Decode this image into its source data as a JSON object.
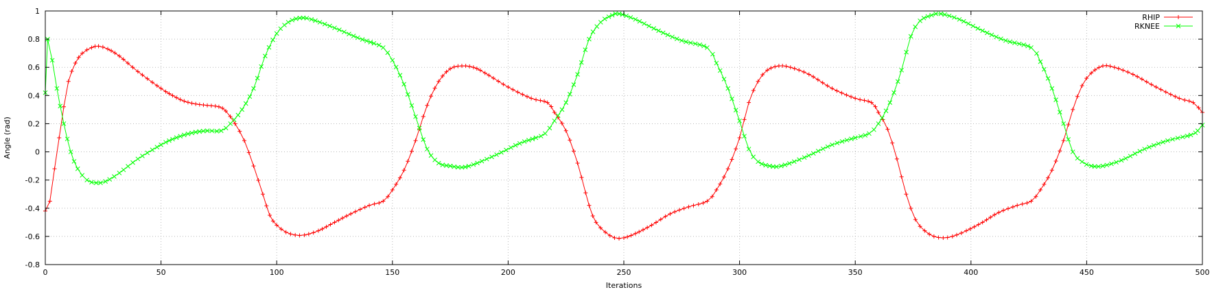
{
  "chart_data": {
    "type": "line",
    "title": "",
    "xlabel": "Iterations",
    "ylabel": "Angle (rad)",
    "xlim": [
      0,
      500
    ],
    "ylim": [
      -0.8,
      1
    ],
    "x_ticks": [
      0,
      50,
      100,
      150,
      200,
      250,
      300,
      350,
      400,
      450,
      500
    ],
    "y_ticks": [
      -0.8,
      -0.6,
      -0.4,
      -0.2,
      0,
      0.2,
      0.4,
      0.6,
      0.8,
      1
    ],
    "y_tick_labels": [
      "-0.8",
      "-0.6",
      "-0.4",
      "-0.2",
      "0",
      "0.2",
      "0.4",
      "0.6",
      "0.8",
      "1"
    ],
    "grid": true,
    "legend_position": "top-right",
    "series": [
      {
        "name": "RHIP",
        "color": "#ff0000",
        "marker": "plus",
        "points": [
          [
            0,
            -0.42
          ],
          [
            2,
            -0.35
          ],
          [
            4,
            -0.12
          ],
          [
            6,
            0.1
          ],
          [
            8,
            0.32
          ],
          [
            10,
            0.5
          ],
          [
            13,
            0.63
          ],
          [
            16,
            0.7
          ],
          [
            20,
            0.74
          ],
          [
            23,
            0.75
          ],
          [
            27,
            0.73
          ],
          [
            32,
            0.68
          ],
          [
            40,
            0.57
          ],
          [
            50,
            0.45
          ],
          [
            55,
            0.4
          ],
          [
            60,
            0.36
          ],
          [
            65,
            0.34
          ],
          [
            70,
            0.33
          ],
          [
            75,
            0.32
          ],
          [
            78,
            0.29
          ],
          [
            82,
            0.2
          ],
          [
            86,
            0.08
          ],
          [
            90,
            -0.1
          ],
          [
            94,
            -0.3
          ],
          [
            97,
            -0.45
          ],
          [
            100,
            -0.52
          ],
          [
            104,
            -0.57
          ],
          [
            108,
            -0.59
          ],
          [
            112,
            -0.59
          ],
          [
            118,
            -0.56
          ],
          [
            125,
            -0.5
          ],
          [
            132,
            -0.44
          ],
          [
            140,
            -0.38
          ],
          [
            146,
            -0.35
          ],
          [
            150,
            -0.27
          ],
          [
            155,
            -0.13
          ],
          [
            160,
            0.08
          ],
          [
            165,
            0.33
          ],
          [
            170,
            0.5
          ],
          [
            175,
            0.59
          ],
          [
            180,
            0.61
          ],
          [
            185,
            0.6
          ],
          [
            190,
            0.56
          ],
          [
            200,
            0.46
          ],
          [
            210,
            0.38
          ],
          [
            217,
            0.35
          ],
          [
            220,
            0.28
          ],
          [
            225,
            0.15
          ],
          [
            230,
            -0.08
          ],
          [
            235,
            -0.38
          ],
          [
            238,
            -0.5
          ],
          [
            242,
            -0.57
          ],
          [
            246,
            -0.61
          ],
          [
            250,
            -0.61
          ],
          [
            255,
            -0.58
          ],
          [
            262,
            -0.52
          ],
          [
            270,
            -0.44
          ],
          [
            278,
            -0.39
          ],
          [
            286,
            -0.35
          ],
          [
            290,
            -0.27
          ],
          [
            295,
            -0.12
          ],
          [
            300,
            0.1
          ],
          [
            304,
            0.35
          ],
          [
            308,
            0.5
          ],
          [
            312,
            0.58
          ],
          [
            317,
            0.61
          ],
          [
            322,
            0.6
          ],
          [
            330,
            0.55
          ],
          [
            340,
            0.45
          ],
          [
            350,
            0.38
          ],
          [
            357,
            0.35
          ],
          [
            360,
            0.28
          ],
          [
            364,
            0.16
          ],
          [
            368,
            -0.05
          ],
          [
            372,
            -0.3
          ],
          [
            376,
            -0.48
          ],
          [
            380,
            -0.56
          ],
          [
            384,
            -0.6
          ],
          [
            388,
            -0.61
          ],
          [
            392,
            -0.6
          ],
          [
            398,
            -0.56
          ],
          [
            405,
            -0.5
          ],
          [
            412,
            -0.43
          ],
          [
            420,
            -0.38
          ],
          [
            426,
            -0.35
          ],
          [
            430,
            -0.27
          ],
          [
            435,
            -0.13
          ],
          [
            440,
            0.08
          ],
          [
            444,
            0.3
          ],
          [
            448,
            0.47
          ],
          [
            452,
            0.56
          ],
          [
            457,
            0.61
          ],
          [
            462,
            0.6
          ],
          [
            470,
            0.55
          ],
          [
            480,
            0.46
          ],
          [
            490,
            0.38
          ],
          [
            496,
            0.35
          ],
          [
            500,
            0.28
          ]
        ]
      },
      {
        "name": "RKNEE",
        "color": "#00ff00",
        "marker": "cross",
        "points": [
          [
            0,
            0.42
          ],
          [
            1,
            0.8
          ],
          [
            3,
            0.65
          ],
          [
            5,
            0.45
          ],
          [
            8,
            0.2
          ],
          [
            11,
            0.0
          ],
          [
            14,
            -0.12
          ],
          [
            18,
            -0.2
          ],
          [
            22,
            -0.22
          ],
          [
            26,
            -0.21
          ],
          [
            32,
            -0.15
          ],
          [
            40,
            -0.05
          ],
          [
            50,
            0.05
          ],
          [
            55,
            0.09
          ],
          [
            60,
            0.12
          ],
          [
            65,
            0.14
          ],
          [
            70,
            0.15
          ],
          [
            76,
            0.15
          ],
          [
            80,
            0.2
          ],
          [
            85,
            0.3
          ],
          [
            90,
            0.45
          ],
          [
            95,
            0.68
          ],
          [
            100,
            0.84
          ],
          [
            105,
            0.92
          ],
          [
            110,
            0.95
          ],
          [
            115,
            0.94
          ],
          [
            125,
            0.88
          ],
          [
            135,
            0.81
          ],
          [
            142,
            0.77
          ],
          [
            146,
            0.74
          ],
          [
            150,
            0.65
          ],
          [
            155,
            0.48
          ],
          [
            160,
            0.25
          ],
          [
            165,
            0.02
          ],
          [
            170,
            -0.08
          ],
          [
            175,
            -0.1
          ],
          [
            180,
            -0.11
          ],
          [
            185,
            -0.09
          ],
          [
            195,
            -0.02
          ],
          [
            205,
            0.06
          ],
          [
            212,
            0.1
          ],
          [
            216,
            0.13
          ],
          [
            220,
            0.22
          ],
          [
            225,
            0.35
          ],
          [
            230,
            0.55
          ],
          [
            235,
            0.8
          ],
          [
            240,
            0.92
          ],
          [
            245,
            0.97
          ],
          [
            248,
            0.98
          ],
          [
            255,
            0.94
          ],
          [
            265,
            0.86
          ],
          [
            275,
            0.79
          ],
          [
            286,
            0.74
          ],
          [
            290,
            0.63
          ],
          [
            295,
            0.45
          ],
          [
            300,
            0.22
          ],
          [
            304,
            0.02
          ],
          [
            308,
            -0.07
          ],
          [
            313,
            -0.1
          ],
          [
            318,
            -0.1
          ],
          [
            328,
            -0.04
          ],
          [
            340,
            0.05
          ],
          [
            350,
            0.1
          ],
          [
            356,
            0.13
          ],
          [
            360,
            0.2
          ],
          [
            365,
            0.35
          ],
          [
            370,
            0.58
          ],
          [
            374,
            0.82
          ],
          [
            378,
            0.93
          ],
          [
            383,
            0.97
          ],
          [
            387,
            0.98
          ],
          [
            395,
            0.94
          ],
          [
            405,
            0.86
          ],
          [
            415,
            0.79
          ],
          [
            426,
            0.74
          ],
          [
            430,
            0.64
          ],
          [
            435,
            0.45
          ],
          [
            440,
            0.2
          ],
          [
            444,
            0.0
          ],
          [
            448,
            -0.07
          ],
          [
            452,
            -0.1
          ],
          [
            457,
            -0.1
          ],
          [
            465,
            -0.06
          ],
          [
            475,
            0.02
          ],
          [
            485,
            0.08
          ],
          [
            495,
            0.12
          ],
          [
            498,
            0.15
          ],
          [
            500,
            0.19
          ]
        ]
      }
    ]
  }
}
